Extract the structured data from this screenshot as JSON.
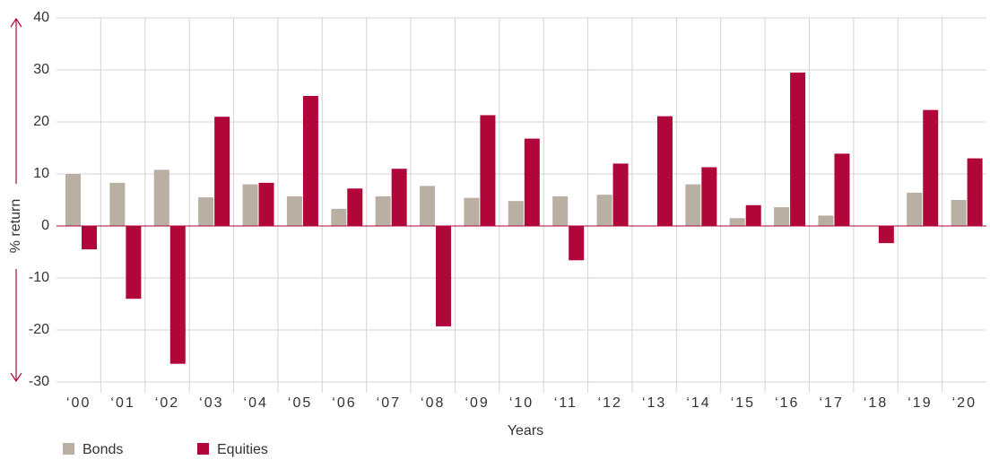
{
  "chart_data": {
    "type": "bar",
    "categories": [
      "‘00",
      "‘01",
      "‘02",
      "‘03",
      "‘04",
      "‘05",
      "‘06",
      "‘07",
      "‘08",
      "‘09",
      "‘10",
      "‘11",
      "‘12",
      "‘13",
      "‘14",
      "‘15",
      "‘16",
      "‘17",
      "‘18",
      "‘19",
      "‘20"
    ],
    "series": [
      {
        "name": "Bonds",
        "color": "#b9afa3",
        "values": [
          10,
          8.3,
          10.8,
          5.5,
          8,
          5.7,
          3.3,
          5.7,
          7.7,
          5.4,
          4.8,
          5.7,
          6,
          0,
          8,
          1.5,
          3.6,
          2,
          0,
          6.4,
          5
        ]
      },
      {
        "name": "Equities",
        "color": "#b0063a",
        "values": [
          -4.5,
          -14,
          -26.5,
          21,
          8.3,
          25,
          7.2,
          11,
          -19.3,
          21.3,
          16.8,
          -6.6,
          12,
          21.1,
          11.3,
          4,
          29.5,
          13.9,
          -3.3,
          22.3,
          13
        ]
      }
    ],
    "xlabel": "Years",
    "ylabel": "% return",
    "ylim": [
      -30,
      40
    ],
    "yticks": [
      -30,
      -20,
      -10,
      0,
      10,
      20,
      30,
      40
    ],
    "grid": true
  }
}
